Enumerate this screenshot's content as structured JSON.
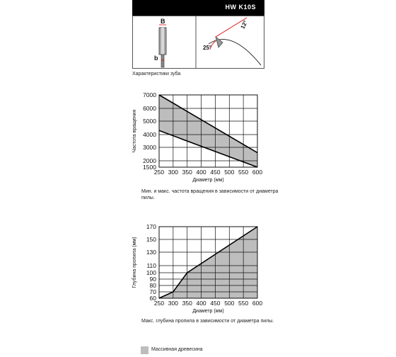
{
  "header": {
    "title": "HW K10S"
  },
  "tooth": {
    "caption": "Характеристики зуба",
    "label_B": "B",
    "label_b": "b",
    "angle_top": "12°",
    "angle_side": "25°"
  },
  "chart_data": [
    {
      "type": "area",
      "ylabel": "Частота вращения",
      "xlabel": "Диаметр (мм)",
      "caption": "Мин. и макс. частота вращения в зависимости от диаметра пилы.",
      "x_ticks": [
        250,
        300,
        350,
        400,
        450,
        500,
        550,
        600
      ],
      "y_ticks": [
        1500,
        2000,
        3000,
        4000,
        5000,
        6000,
        7000
      ],
      "xlim": [
        250,
        600
      ],
      "ylim": [
        1500,
        7000
      ],
      "series": [
        {
          "name": "max",
          "x": [
            250,
            600
          ],
          "y": [
            7000,
            2600
          ]
        },
        {
          "name": "min",
          "x": [
            250,
            600
          ],
          "y": [
            4300,
            1500
          ]
        }
      ]
    },
    {
      "type": "area",
      "ylabel": "Глубина пропила (мм)",
      "xlabel": "Диаметр (мм)",
      "caption": "Макс. глубина пропила в зависимости от диаметра пилы.",
      "x_ticks": [
        250,
        300,
        350,
        400,
        450,
        500,
        550,
        600
      ],
      "y_ticks": [
        60,
        70,
        80,
        90,
        100,
        110,
        130,
        150,
        170
      ],
      "xlim": [
        250,
        600
      ],
      "ylim": [
        60,
        170
      ],
      "series": [
        {
          "name": "max",
          "x": [
            250,
            300,
            350,
            600
          ],
          "y": [
            60,
            70,
            100,
            170
          ]
        }
      ]
    }
  ],
  "legend": {
    "label": "Массивная древесина",
    "color": "#bdbdbd"
  }
}
